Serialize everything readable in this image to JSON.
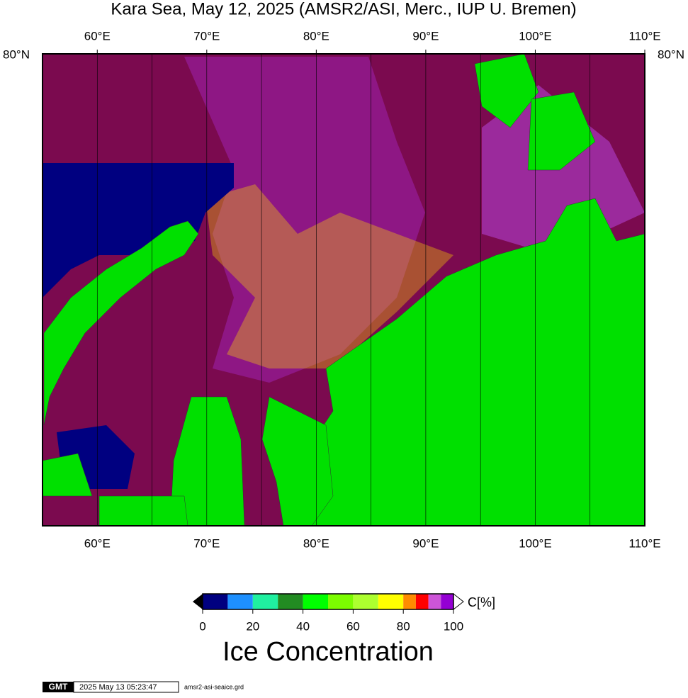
{
  "title": "Kara Sea, May 12, 2025 (AMSR2/ASI, Merc., IUP U. Bremen)",
  "map": {
    "lon_labels": [
      "60°E",
      "70°E",
      "80°E",
      "90°E",
      "100°E",
      "110°E"
    ],
    "lat_label": "80°N"
  },
  "colorbar": {
    "bounds": [
      0,
      10,
      20,
      30,
      40,
      50,
      60,
      70,
      80,
      85,
      90,
      95,
      100
    ],
    "colors": [
      "#000080",
      "#1e90ff",
      "#20f0a0",
      "#228b22",
      "#00ff00",
      "#7cfc00",
      "#adff2f",
      "#ffff00",
      "#ff8c00",
      "#ff0000",
      "#cd55d8",
      "#9400d3"
    ],
    "ticks": [
      0,
      20,
      40,
      60,
      80,
      100
    ],
    "unit": "C[%]",
    "label": "Ice Concentration"
  },
  "footer": {
    "logo": "GMT",
    "timestamp": "2025 May 13 05:23:47",
    "file": "amsr2-asi-seaice.grd"
  }
}
